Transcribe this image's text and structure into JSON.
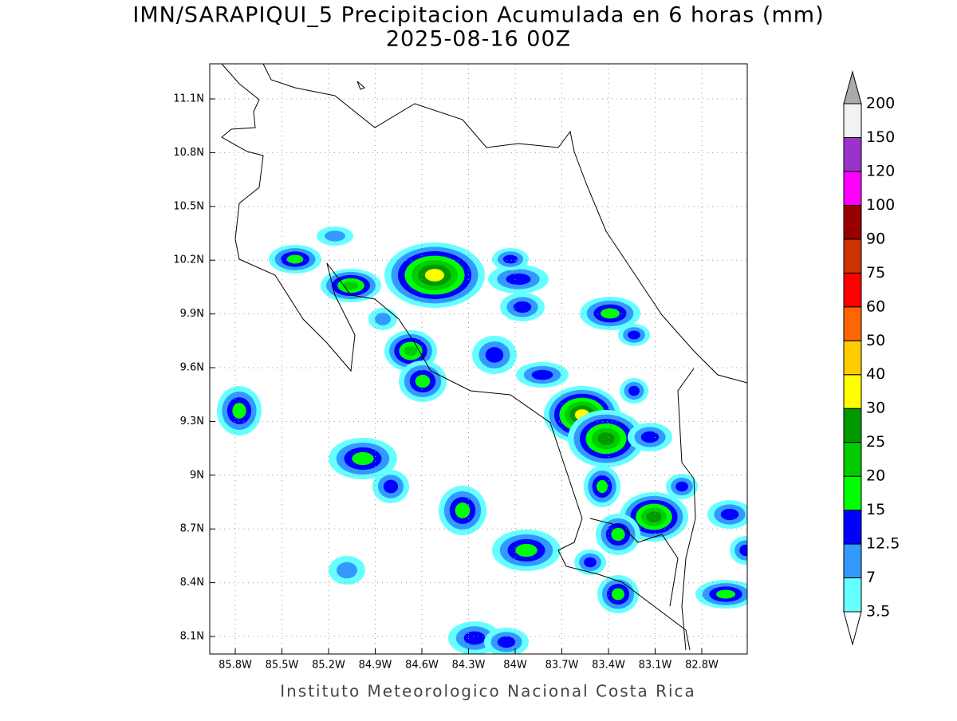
{
  "map": {
    "title": "IMN/SARAPIQUI_5 Precipitacion Acumulada en 6 horas (mm)",
    "subtitle": "2025-08-16 00Z",
    "lon_labels": [
      "85.8W",
      "85.5W",
      "85.2W",
      "84.9W",
      "84.6W",
      "84.3W",
      "84W",
      "83.7W",
      "83.4W",
      "83.1W",
      "82.8W"
    ],
    "lat_labels": [
      "11.1N",
      "10.8N",
      "10.5N",
      "10.2N",
      "9.9N",
      "9.6N",
      "9.3N",
      "9N",
      "8.7N",
      "8.4N",
      "8.1N"
    ],
    "colorbar": {
      "levels": [
        3.5,
        7,
        12.5,
        15,
        20,
        25,
        30,
        40,
        50,
        60,
        75,
        90,
        100,
        120,
        150,
        200
      ],
      "colors": [
        "#66ffff",
        "#3399ff",
        "#0000ff",
        "#00ff00",
        "#00cc00",
        "#009900",
        "#ffff00",
        "#ffcc00",
        "#ff6600",
        "#ff0000",
        "#cc3300",
        "#990000",
        "#ff00ff",
        "#9933cc",
        "#f2f2f2"
      ],
      "below_color": "#ffffff",
      "above_color": "#aaaaaa"
    },
    "footer": "Instituto Meteorologico Nacional Costa Rica"
  }
}
